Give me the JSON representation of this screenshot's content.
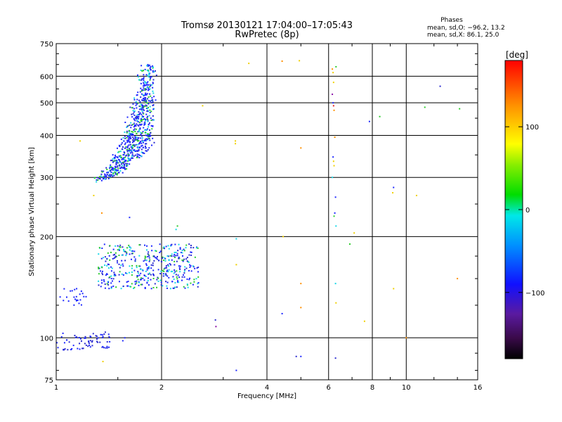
{
  "chart_data": {
    "type": "scatter",
    "title": "Tromsø 20130121 17:04:00–17:05:43",
    "subtitle": "RwPretec (8p)",
    "xlabel": "Frequency [MHz]",
    "ylabel": "Stationary phase Virtual Height [km]",
    "x_scale": "log",
    "y_scale": "log",
    "xlim": [
      1,
      16
    ],
    "ylim": [
      75,
      750
    ],
    "x_ticks": [
      "1",
      "2",
      "4",
      "6",
      "8",
      "10",
      "16"
    ],
    "y_ticks": [
      "75",
      "100",
      "200",
      "300",
      "400",
      "500",
      "600",
      "750"
    ],
    "grid": true,
    "phase_stats": {
      "header": "Phases",
      "line_o": "mean, sd,O: −96.2, 13.2",
      "line_x": "mean, sd,X:  86.1, 25.0"
    },
    "colorbar": {
      "label": "[deg]",
      "range": [
        -180,
        180
      ],
      "ticks": [
        "100",
        "0",
        "−100"
      ]
    },
    "point_colors": {
      "blue": "#1e28ff",
      "navy": "#2b2bd0",
      "cyan": "#18d7e8",
      "green": "#2dcc2d",
      "yellow": "#f0d000",
      "orange": "#ff9000",
      "red": "#e82020",
      "purple": "#8a10a8",
      "black": "#000000"
    },
    "clusters": [
      {
        "x": [
          1.29,
          1.88
        ],
        "y": [
          290,
          650
        ],
        "shape": "arc",
        "n": 700,
        "colors": [
          "blue",
          "blue",
          "blue",
          "navy",
          "cyan",
          "green"
        ]
      },
      {
        "x": [
          1.32,
          2.55
        ],
        "y": [
          140,
          190
        ],
        "shape": "box",
        "n": 430,
        "colors": [
          "blue",
          "blue",
          "navy",
          "cyan",
          "green"
        ]
      },
      {
        "x": [
          1.02,
          1.22
        ],
        "y": [
          125,
          140
        ],
        "shape": "box",
        "n": 24,
        "colors": [
          "blue"
        ]
      },
      {
        "x": [
          1.0,
          1.45
        ],
        "y": [
          92,
          104
        ],
        "shape": "box",
        "n": 70,
        "colors": [
          "blue",
          "navy"
        ]
      }
    ],
    "points": [
      {
        "x": 1.17,
        "y": 385,
        "c": "yellow"
      },
      {
        "x": 1.28,
        "y": 265,
        "c": "yellow"
      },
      {
        "x": 1.35,
        "y": 235,
        "c": "orange"
      },
      {
        "x": 1.36,
        "y": 85,
        "c": "yellow"
      },
      {
        "x": 1.55,
        "y": 98,
        "c": "blue"
      },
      {
        "x": 1.57,
        "y": 100,
        "c": "blue"
      },
      {
        "x": 1.62,
        "y": 228,
        "c": "blue"
      },
      {
        "x": 2.2,
        "y": 210,
        "c": "cyan"
      },
      {
        "x": 2.22,
        "y": 215,
        "c": "green"
      },
      {
        "x": 2.62,
        "y": 490,
        "c": "yellow"
      },
      {
        "x": 2.85,
        "y": 113,
        "c": "navy"
      },
      {
        "x": 2.86,
        "y": 108,
        "c": "purple"
      },
      {
        "x": 3.25,
        "y": 385,
        "c": "yellow"
      },
      {
        "x": 3.25,
        "y": 378,
        "c": "yellow"
      },
      {
        "x": 3.27,
        "y": 197,
        "c": "cyan"
      },
      {
        "x": 3.27,
        "y": 165,
        "c": "yellow"
      },
      {
        "x": 3.27,
        "y": 80,
        "c": "blue"
      },
      {
        "x": 3.55,
        "y": 655,
        "c": "yellow"
      },
      {
        "x": 4.42,
        "y": 665,
        "c": "orange"
      },
      {
        "x": 4.45,
        "y": 200,
        "c": "yellow"
      },
      {
        "x": 4.42,
        "y": 118,
        "c": "blue"
      },
      {
        "x": 4.85,
        "y": 88,
        "c": "navy"
      },
      {
        "x": 5.0,
        "y": 88,
        "c": "blue"
      },
      {
        "x": 5.0,
        "y": 367,
        "c": "orange"
      },
      {
        "x": 5.0,
        "y": 145,
        "c": "orange"
      },
      {
        "x": 5.0,
        "y": 123,
        "c": "orange"
      },
      {
        "x": 4.95,
        "y": 667,
        "c": "yellow"
      },
      {
        "x": 6.15,
        "y": 630,
        "c": "orange"
      },
      {
        "x": 6.18,
        "y": 615,
        "c": "yellow"
      },
      {
        "x": 6.2,
        "y": 575,
        "c": "yellow"
      },
      {
        "x": 6.15,
        "y": 530,
        "c": "purple"
      },
      {
        "x": 6.18,
        "y": 500,
        "c": "blue"
      },
      {
        "x": 6.2,
        "y": 490,
        "c": "red"
      },
      {
        "x": 6.22,
        "y": 475,
        "c": "orange"
      },
      {
        "x": 6.25,
        "y": 395,
        "c": "orange"
      },
      {
        "x": 6.18,
        "y": 345,
        "c": "blue"
      },
      {
        "x": 6.2,
        "y": 335,
        "c": "yellow"
      },
      {
        "x": 6.22,
        "y": 325,
        "c": "yellow"
      },
      {
        "x": 6.15,
        "y": 300,
        "c": "cyan"
      },
      {
        "x": 6.28,
        "y": 262,
        "c": "blue"
      },
      {
        "x": 6.25,
        "y": 235,
        "c": "blue"
      },
      {
        "x": 6.22,
        "y": 230,
        "c": "green"
      },
      {
        "x": 6.3,
        "y": 215,
        "c": "cyan"
      },
      {
        "x": 6.28,
        "y": 145,
        "c": "cyan"
      },
      {
        "x": 6.3,
        "y": 127,
        "c": "yellow"
      },
      {
        "x": 6.28,
        "y": 87,
        "c": "navy"
      },
      {
        "x": 6.3,
        "y": 640,
        "c": "green"
      },
      {
        "x": 6.9,
        "y": 190,
        "c": "green"
      },
      {
        "x": 7.1,
        "y": 205,
        "c": "yellow"
      },
      {
        "x": 7.6,
        "y": 112,
        "c": "yellow"
      },
      {
        "x": 7.85,
        "y": 440,
        "c": "blue"
      },
      {
        "x": 8.4,
        "y": 455,
        "c": "green"
      },
      {
        "x": 9.15,
        "y": 270,
        "c": "yellow"
      },
      {
        "x": 9.2,
        "y": 280,
        "c": "blue"
      },
      {
        "x": 9.2,
        "y": 140,
        "c": "yellow"
      },
      {
        "x": 10.0,
        "y": 100,
        "c": "orange"
      },
      {
        "x": 10.7,
        "y": 265,
        "c": "yellow"
      },
      {
        "x": 11.3,
        "y": 485,
        "c": "green"
      },
      {
        "x": 12.5,
        "y": 560,
        "c": "navy"
      },
      {
        "x": 14.0,
        "y": 150,
        "c": "orange"
      },
      {
        "x": 14.2,
        "y": 480,
        "c": "green"
      }
    ]
  }
}
